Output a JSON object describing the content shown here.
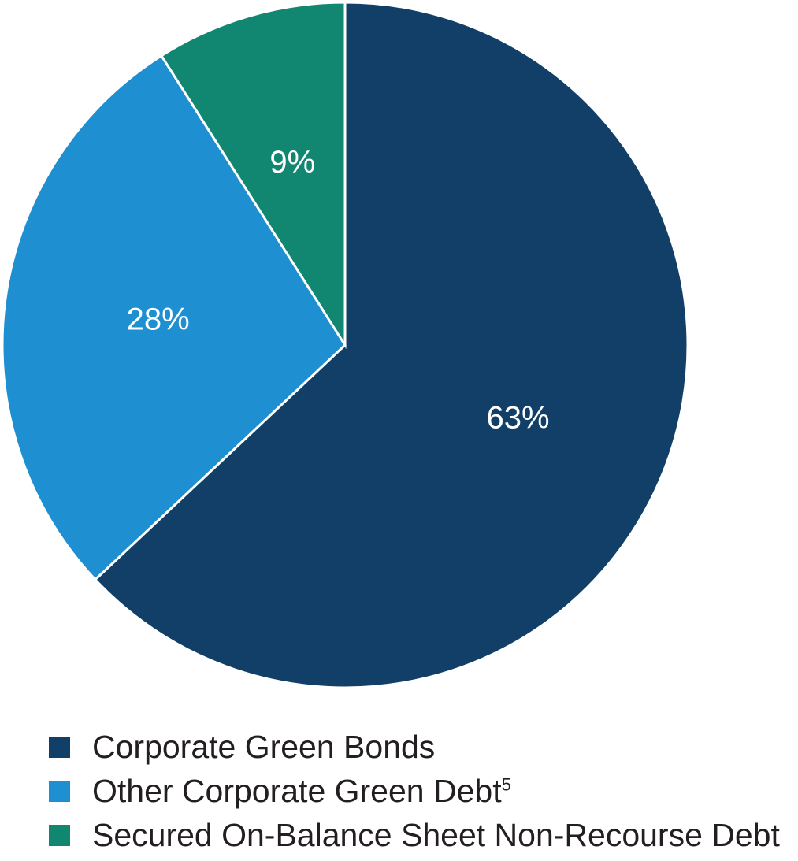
{
  "chart_data": {
    "type": "pie",
    "title": "",
    "legend_position": "bottom-left",
    "slices": [
      {
        "name": "Corporate Green Bonds",
        "value": 63,
        "label": "63%",
        "color": "#113f67"
      },
      {
        "name": "Other Corporate Green Debt",
        "name_superscript": "5",
        "value": 28,
        "label": "28%",
        "color": "#1e8fd0"
      },
      {
        "name": "Secured On-Balance Sheet Non-Recourse Debt",
        "value": 9,
        "label": "9%",
        "color": "#118772"
      }
    ]
  }
}
